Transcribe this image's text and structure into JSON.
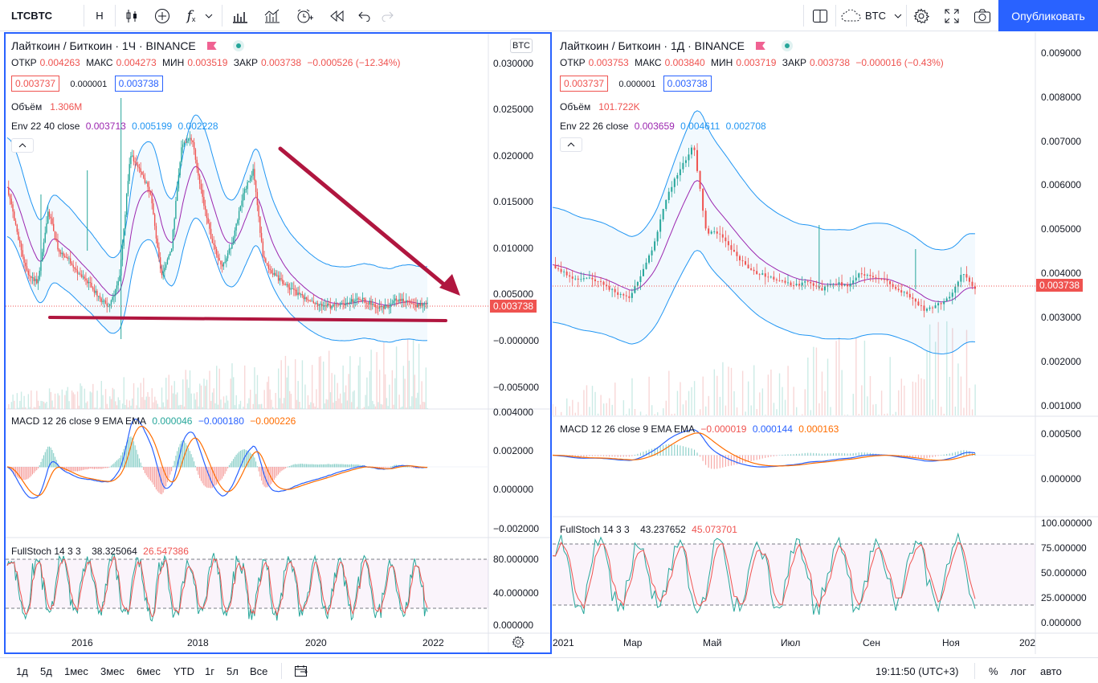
{
  "toolbar": {
    "symbol": "LTCBTC",
    "interval": "H",
    "fx_label": "f",
    "currency": "BTC",
    "publish": "Опубликовать"
  },
  "left": {
    "title": "Лайткоин / Биткоин · 1Ч · BINANCE",
    "ohlc": {
      "o_label": "ОТКР",
      "o": "0.004263",
      "h_label": "МАКС",
      "h": "0.004273",
      "l_label": "МИН",
      "l": "0.003519",
      "c_label": "ЗАКР",
      "c": "0.003738",
      "chg": "−0.000526 (−12.34%)"
    },
    "bid": "0.003737",
    "spread": "0.000001",
    "ask": "0.003738",
    "volume_label": "Объём",
    "volume": "1.306M",
    "env_label": "Env 22 40 close",
    "env_a": "0.003713",
    "env_b": "0.005199",
    "env_c": "0.002228",
    "btc_box": "BTC",
    "price_axis": [
      "0.030000",
      "0.025000",
      "0.020000",
      "0.015000",
      "0.010000",
      "0.005000",
      "−0.000000",
      "−0.005000"
    ],
    "last_price": "0.003738",
    "macd_label": "MACD 12 26 close 9 EMA EMA",
    "macd_a": "0.000046",
    "macd_b": "−0.000180",
    "macd_c": "−0.000226",
    "macd_axis": [
      "0.004000",
      "0.002000",
      "0.000000",
      "−0.002000"
    ],
    "stoch_label": "FullStoch 14 3 3",
    "stoch_a": "38.325064",
    "stoch_b": "26.547386",
    "stoch_axis": [
      "80.000000",
      "40.000000",
      "0.000000"
    ],
    "time_axis": [
      "2016",
      "2018",
      "2020",
      "2022"
    ]
  },
  "right": {
    "title": "Лайткоин / Биткоин · 1Д · BINANCE",
    "ohlc": {
      "o_label": "ОТКР",
      "o": "0.003753",
      "h_label": "МАКС",
      "h": "0.003840",
      "l_label": "МИН",
      "l": "0.003719",
      "c_label": "ЗАКР",
      "c": "0.003738",
      "chg": "−0.000016 (−0.43%)"
    },
    "bid": "0.003737",
    "spread": "0.000001",
    "ask": "0.003738",
    "volume_label": "Объём",
    "volume": "101.722K",
    "env_label": "Env 22 26 close",
    "env_a": "0.003659",
    "env_b": "0.004611",
    "env_c": "0.002708",
    "price_axis": [
      "0.009000",
      "0.008000",
      "0.007000",
      "0.006000",
      "0.005000",
      "0.004000",
      "0.003000",
      "0.002000",
      "0.001000"
    ],
    "last_price": "0.003738",
    "macd_label": "MACD 12 26 close 9 EMA EMA",
    "macd_a": "−0.000019",
    "macd_b": "0.000144",
    "macd_c": "0.000163",
    "macd_axis": [
      "0.000500",
      "0.000000"
    ],
    "stoch_label": "FullStoch 14 3 3",
    "stoch_a": "43.237652",
    "stoch_b": "45.073701",
    "stoch_axis": [
      "100.000000",
      "75.000000",
      "50.000000",
      "25.000000",
      "0.000000"
    ],
    "time_axis": [
      "2021",
      "Мар",
      "Май",
      "Июл",
      "Сен",
      "Ноя",
      "202"
    ]
  },
  "bottom": {
    "ranges": [
      "1д",
      "5д",
      "1мес",
      "3мес",
      "6мес",
      "YTD",
      "1г",
      "5л",
      "Все"
    ],
    "clock": "19:11:50 (UTC+3)",
    "percent": "%",
    "log": "лог",
    "auto": "авто"
  },
  "colors": {
    "accent": "#2962ff",
    "down": "#ef5350",
    "up": "#26a69a",
    "arrow": "#b0163f",
    "env": "#2196f3",
    "basis": "#9c27b0"
  }
}
